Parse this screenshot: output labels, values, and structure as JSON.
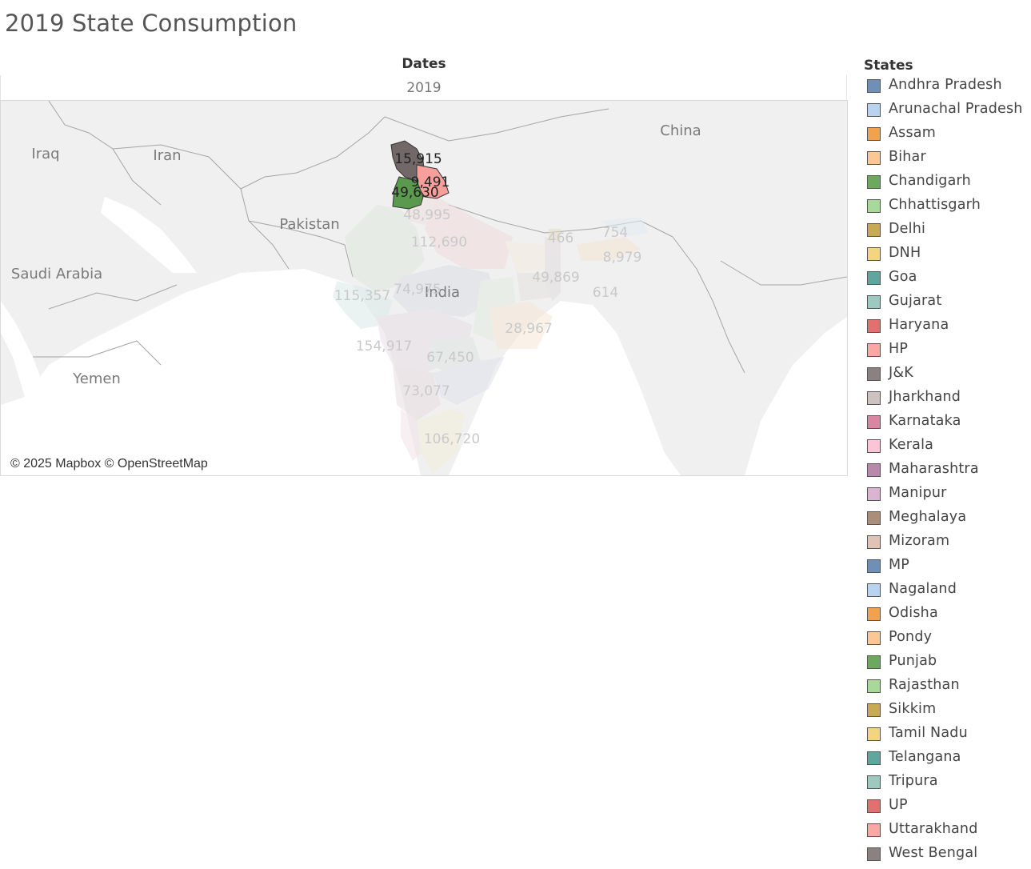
{
  "title": "2019 State Consumption",
  "column_header": {
    "label": "Dates",
    "value": "2019"
  },
  "map": {
    "attribution": "© 2025 Mapbox © OpenStreetMap",
    "country_labels": [
      {
        "id": "iraq",
        "text": "Iraq"
      },
      {
        "id": "iran",
        "text": "Iran"
      },
      {
        "id": "pakistan",
        "text": "Pakistan"
      },
      {
        "id": "saudi-arabia",
        "text": "Saudi Arabia"
      },
      {
        "id": "yemen",
        "text": "Yemen"
      },
      {
        "id": "china",
        "text": "China"
      },
      {
        "id": "india",
        "text": "India"
      }
    ],
    "values": [
      {
        "id": "jk",
        "state": "J&K",
        "text": "15,915",
        "highlighted": true
      },
      {
        "id": "hp",
        "state": "HP",
        "text": "9,491",
        "highlighted": true
      },
      {
        "id": "punjab",
        "state": "Punjab",
        "text": "49,630",
        "highlighted": true
      },
      {
        "id": "haryana",
        "state": "Haryana",
        "text": "48,995",
        "highlighted": false
      },
      {
        "id": "up",
        "state": "UP",
        "text": "112,690",
        "highlighted": false
      },
      {
        "id": "gujarat",
        "state": "Gujarat",
        "text": "115,357",
        "highlighted": false
      },
      {
        "id": "mp",
        "state": "MP",
        "text": "74,975",
        "highlighted": false
      },
      {
        "id": "maharashtra",
        "state": "Maharashtra",
        "text": "154,917",
        "highlighted": false
      },
      {
        "id": "telangana",
        "state": "Telangana",
        "text": "67,450",
        "highlighted": false
      },
      {
        "id": "odisha",
        "state": "Odisha",
        "text": "28,967",
        "highlighted": false
      },
      {
        "id": "karnataka",
        "state": "Karnataka",
        "text": "73,077",
        "highlighted": false
      },
      {
        "id": "tamil-nadu",
        "state": "Tamil Nadu",
        "text": "106,720",
        "highlighted": false
      },
      {
        "id": "west-bengal",
        "state": "West Bengal",
        "text": "49,869",
        "highlighted": false
      },
      {
        "id": "sikkim",
        "state": "Sikkim",
        "text": "466",
        "highlighted": false
      },
      {
        "id": "arunachal",
        "state": "Arunachal Pradesh",
        "text": "754",
        "highlighted": false
      },
      {
        "id": "assam",
        "state": "Assam",
        "text": "8,979",
        "highlighted": false
      },
      {
        "id": "tripura",
        "state": "Tripura",
        "text": "614",
        "highlighted": false
      }
    ]
  },
  "legend": {
    "title": "States",
    "items": [
      {
        "label": "Andhra Pradesh",
        "color": "#6f8fb6"
      },
      {
        "label": "Arunachal Pradesh",
        "color": "#b7d3ef"
      },
      {
        "label": "Assam",
        "color": "#f4a14d"
      },
      {
        "label": "Bihar",
        "color": "#fbc894"
      },
      {
        "label": "Chandigarh",
        "color": "#6da85f"
      },
      {
        "label": "Chhattisgarh",
        "color": "#a8d99a"
      },
      {
        "label": "Delhi",
        "color": "#c7aa52"
      },
      {
        "label": "DNH",
        "color": "#f4d57f"
      },
      {
        "label": "Goa",
        "color": "#5fa79e"
      },
      {
        "label": "Gujarat",
        "color": "#9ec9c1"
      },
      {
        "label": "Haryana",
        "color": "#e46f6f"
      },
      {
        "label": "HP",
        "color": "#fba8a4"
      },
      {
        "label": "J&K",
        "color": "#8b8181"
      },
      {
        "label": "Jharkhand",
        "color": "#cdc2c0"
      },
      {
        "label": "Karnataka",
        "color": "#dc85a3"
      },
      {
        "label": "Kerala",
        "color": "#fbc5d6"
      },
      {
        "label": "Maharashtra",
        "color": "#b889ab"
      },
      {
        "label": "Manipur",
        "color": "#dab4d1"
      },
      {
        "label": "Meghalaya",
        "color": "#aa8e79"
      },
      {
        "label": "Mizoram",
        "color": "#e1c3b6"
      },
      {
        "label": "MP",
        "color": "#6f8fb6"
      },
      {
        "label": "Nagaland",
        "color": "#b7d3ef"
      },
      {
        "label": "Odisha",
        "color": "#f4a14d"
      },
      {
        "label": "Pondy",
        "color": "#fbc894"
      },
      {
        "label": "Punjab",
        "color": "#6da85f"
      },
      {
        "label": "Rajasthan",
        "color": "#a8d99a"
      },
      {
        "label": "Sikkim",
        "color": "#c7aa52"
      },
      {
        "label": "Tamil Nadu",
        "color": "#f4d57f"
      },
      {
        "label": "Telangana",
        "color": "#5fa79e"
      },
      {
        "label": "Tripura",
        "color": "#9ec9c1"
      },
      {
        "label": "UP",
        "color": "#e46f6f"
      },
      {
        "label": "Uttarakhand",
        "color": "#fba8a4"
      },
      {
        "label": "West Bengal",
        "color": "#8b8181"
      }
    ]
  }
}
